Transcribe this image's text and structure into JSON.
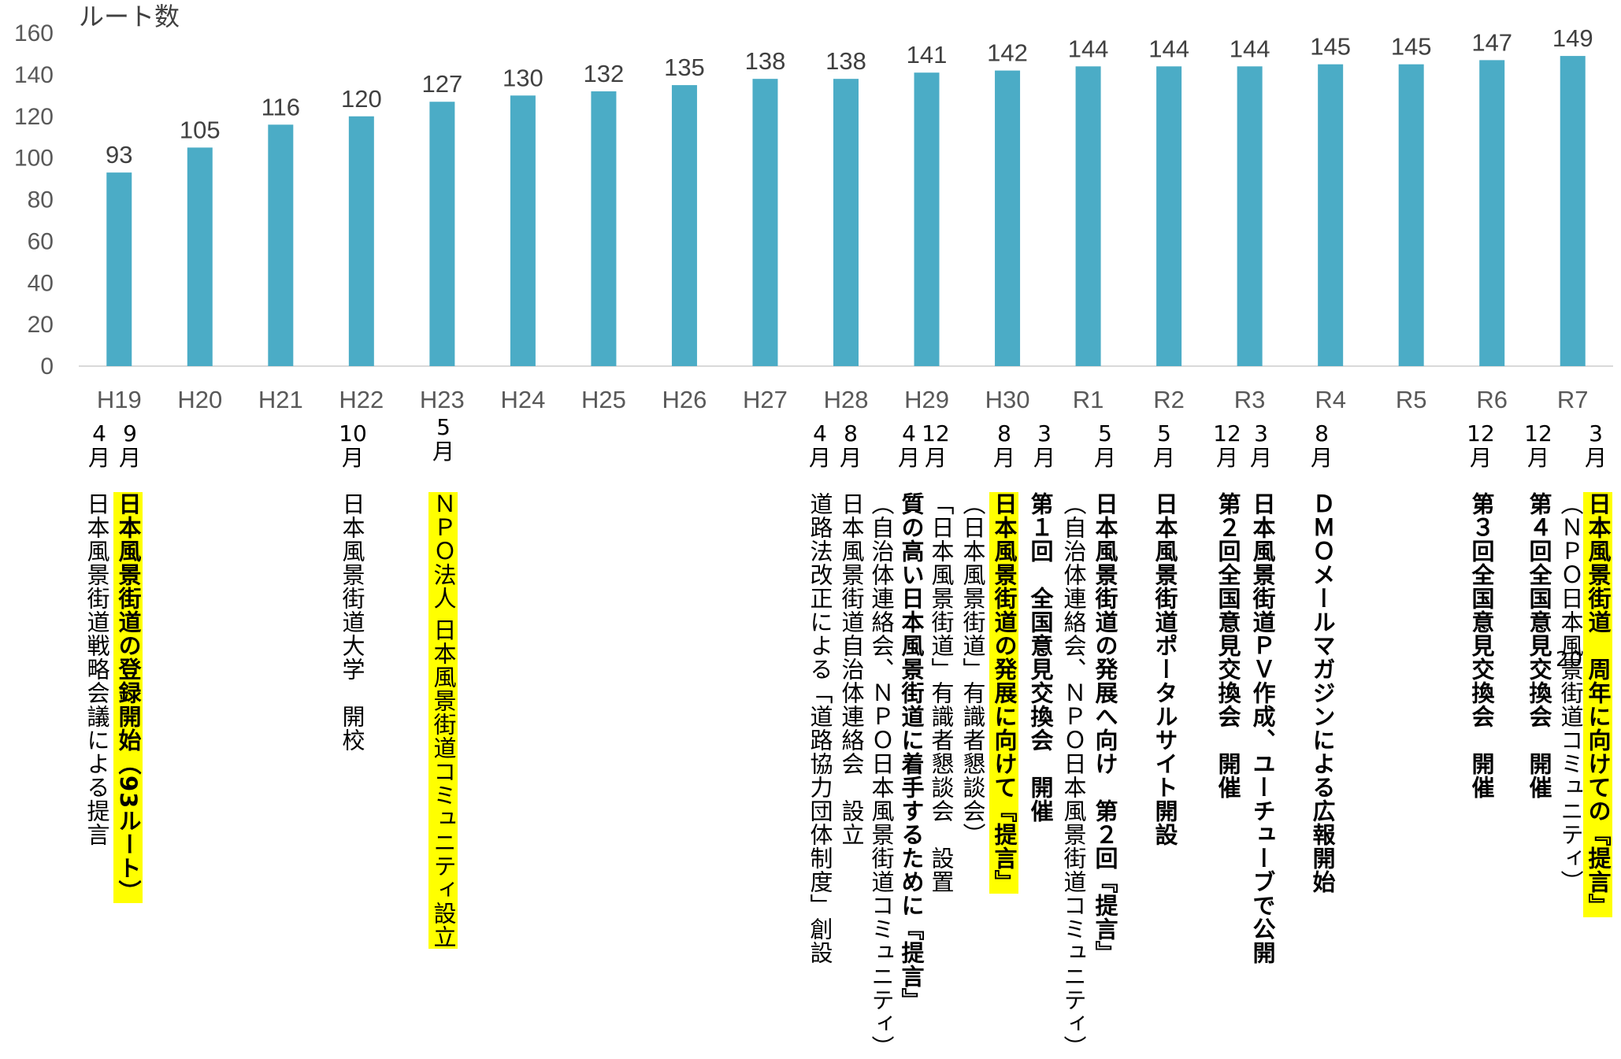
{
  "chart_data": {
    "type": "bar",
    "ylabel": "ルート数",
    "ylim": [
      0,
      160
    ],
    "yticks": [
      0,
      20,
      40,
      60,
      80,
      100,
      120,
      140,
      160
    ],
    "grid": false,
    "bar_color": "#4bacc6",
    "categories": [
      "H19",
      "H20",
      "H21",
      "H22",
      "H23",
      "H24",
      "H25",
      "H26",
      "H27",
      "H28",
      "H29",
      "H30",
      "R1",
      "R2",
      "R3",
      "R4",
      "R5",
      "R6",
      "R7"
    ],
    "values": [
      93,
      105,
      116,
      120,
      127,
      130,
      132,
      135,
      138,
      138,
      141,
      142,
      144,
      144,
      144,
      145,
      145,
      147,
      149
    ],
    "data_labels": [
      "93",
      "105",
      "116",
      "120",
      "127",
      "130",
      "132",
      "135",
      "138",
      "138",
      "141",
      "142",
      "144",
      "144",
      "144",
      "145",
      "145",
      "147",
      "149"
    ]
  },
  "months": [
    "4月",
    "9月",
    "10月",
    "5月",
    "4月",
    "8月",
    "4月",
    "12月",
    "8月",
    "3月",
    "5月",
    "5月",
    "12月",
    "3月",
    "8月",
    "12月",
    "12月",
    "3月"
  ],
  "events": [
    "日本風景街道戦略会議による提言",
    "日本風景街道の登録開始（93ルート）",
    "日本風景街道大学　開校",
    "ＮＰＯ法人 日本風景街道コミュニティ設立",
    "道路法改正による「道路協力団体制度」創設",
    "日本風景街道自治体連絡会　設立",
    "（自治体連絡会、ＮＰＯ日本風景街道コミュニティ）",
    "質の高い日本風景街道に着手するために『提言』",
    "「日本風景街道」有識者懇談会　設置",
    "（日本風景街道」有識者懇談会）",
    "日本風景街道の発展に向けて『提言』",
    "第１回　全国意見交換会　開催",
    "（自治体連絡会、ＮＰＯ日本風景街道コミュニティ）",
    "日本風景街道の発展へ向け　第２回『提言』",
    "日本風景街道ポータルサイト開設",
    "第２回全国意見交換会　開催",
    "日本風景街道ＰＶ作成、ユーチューブで公開",
    "ＤＭＯメールマガジンによる広報開始",
    "第３回全国意見交換会　開催",
    "第４回全国意見交換会　開催",
    "（ＮＰＯ日本風景街道コミュニティ）",
    "日本風景街道　周年に向けての『提言』",
    "20"
  ]
}
